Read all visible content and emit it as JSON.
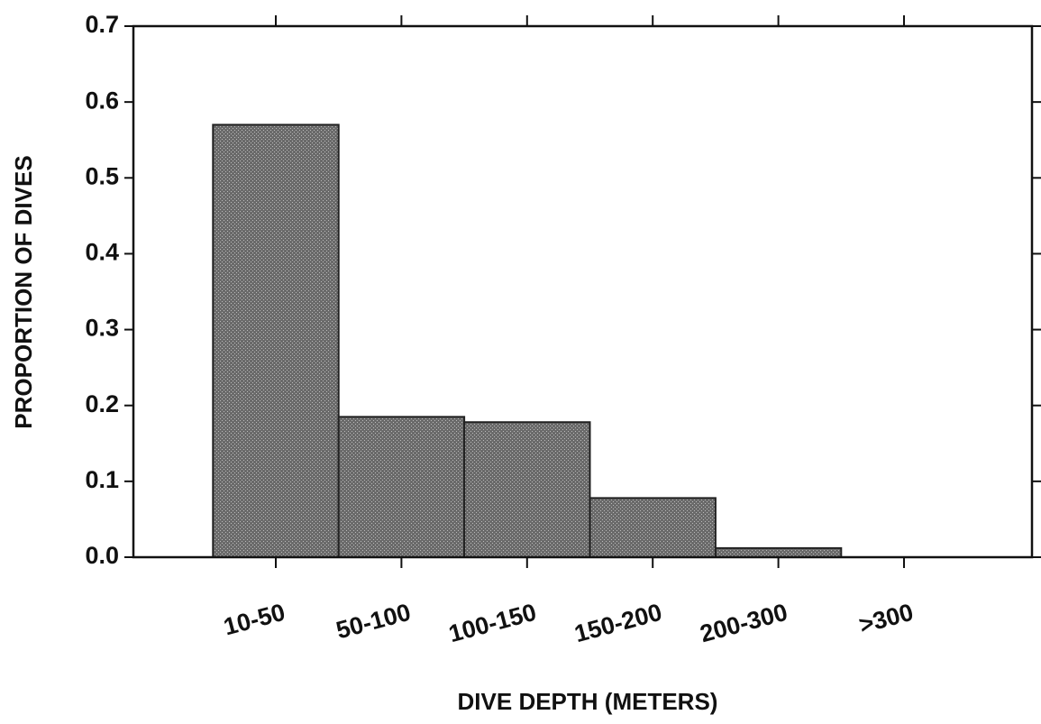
{
  "chart_data": {
    "type": "bar",
    "xlabel": "DIVE DEPTH (METERS)",
    "ylabel": "PROPORTION OF DIVES",
    "categories": [
      "10-50",
      "50-100",
      "100-150",
      "150-200",
      "200-300",
      ">300"
    ],
    "values": [
      0.57,
      0.185,
      0.178,
      0.078,
      0.012,
      0
    ],
    "color": "#5c5c5c",
    "ylim": [
      0,
      0.7
    ],
    "yticks": [
      {
        "value": 0,
        "label": "0.0"
      },
      0.1,
      0.2,
      0.3,
      0.4,
      0.5,
      0.6,
      0.7
    ]
  }
}
